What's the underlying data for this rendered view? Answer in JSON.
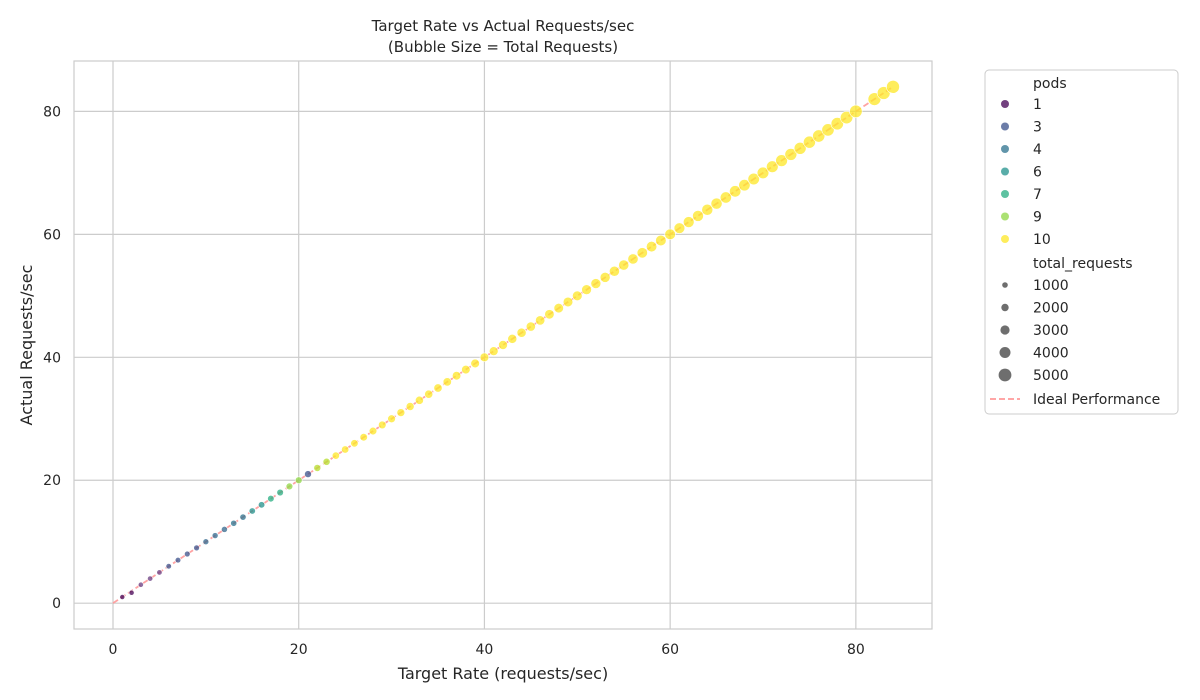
{
  "chart_data": {
    "type": "scatter",
    "title_line1": "Target Rate vs Actual Requests/sec",
    "title_line2": "(Bubble Size = Total Requests)",
    "xlabel": "Target Rate (requests/sec)",
    "ylabel": "Actual Requests/sec",
    "xlim": [
      -4.2,
      88.2
    ],
    "ylim": [
      -4.2,
      88.2
    ],
    "xticks": [
      0,
      20,
      40,
      60,
      80
    ],
    "yticks": [
      0,
      20,
      40,
      60,
      80
    ],
    "grid": true,
    "legend_placement": "outside-top-right",
    "hue_title": "pods",
    "hue_entries": [
      {
        "label": "1",
        "color": "#440154"
      },
      {
        "label": "3",
        "color": "#3b528b"
      },
      {
        "label": "4",
        "color": "#2c728e"
      },
      {
        "label": "6",
        "color": "#21918c"
      },
      {
        "label": "7",
        "color": "#27ad81"
      },
      {
        "label": "9",
        "color": "#8fd744"
      },
      {
        "label": "10",
        "color": "#fde725"
      }
    ],
    "size_title": "total_requests",
    "size_entries": [
      "1000",
      "2000",
      "3000",
      "4000",
      "5000"
    ],
    "ideal_line_label": "Ideal Performance",
    "ideal_line_color": "#ff9a9a",
    "ideal_line": {
      "x": [
        0,
        84
      ],
      "y": [
        0,
        84
      ]
    },
    "point_color_ranges": [
      {
        "from": 1,
        "to": 2,
        "color": "#440154"
      },
      {
        "from": 3,
        "to": 5,
        "color": "#6a3d82"
      },
      {
        "from": 6,
        "to": 9,
        "color": "#3b528b"
      },
      {
        "from": 10,
        "to": 12,
        "color": "#31688e"
      },
      {
        "from": 13,
        "to": 14,
        "color": "#2c728e"
      },
      {
        "from": 15,
        "to": 16,
        "color": "#21918c"
      },
      {
        "from": 17,
        "to": 18,
        "color": "#27ad81"
      },
      {
        "from": 19,
        "to": 20,
        "color": "#8fd744"
      },
      {
        "from": 21,
        "to": 21,
        "color": "#3b528b"
      },
      {
        "from": 22,
        "to": 23,
        "color": "#b5de2b"
      },
      {
        "from": 24,
        "to": 84,
        "color": "#fde725"
      }
    ],
    "points": [
      [
        1,
        1
      ],
      [
        2,
        1.7
      ],
      [
        3,
        3
      ],
      [
        4,
        4
      ],
      [
        5,
        5
      ],
      [
        6,
        6
      ],
      [
        7,
        7
      ],
      [
        8,
        8
      ],
      [
        9,
        9
      ],
      [
        10,
        10
      ],
      [
        11,
        11
      ],
      [
        12,
        12
      ],
      [
        13,
        13
      ],
      [
        14,
        14
      ],
      [
        15,
        15
      ],
      [
        16,
        16
      ],
      [
        17,
        17
      ],
      [
        18,
        18
      ],
      [
        19,
        19
      ],
      [
        20,
        20
      ],
      [
        21,
        21
      ],
      [
        22,
        22
      ],
      [
        23,
        23
      ],
      [
        24,
        24
      ],
      [
        25,
        25
      ],
      [
        26,
        26
      ],
      [
        27,
        27
      ],
      [
        28,
        28
      ],
      [
        29,
        29
      ],
      [
        30,
        30
      ],
      [
        31,
        31
      ],
      [
        32,
        32
      ],
      [
        33,
        33
      ],
      [
        34,
        34
      ],
      [
        35,
        35
      ],
      [
        36,
        36
      ],
      [
        37,
        37
      ],
      [
        38,
        38
      ],
      [
        39,
        39
      ],
      [
        40,
        40
      ],
      [
        41,
        41
      ],
      [
        42,
        42
      ],
      [
        43,
        43
      ],
      [
        44,
        44
      ],
      [
        45,
        45
      ],
      [
        46,
        46
      ],
      [
        47,
        47
      ],
      [
        48,
        48
      ],
      [
        49,
        49
      ],
      [
        50,
        50
      ],
      [
        51,
        51
      ],
      [
        52,
        52
      ],
      [
        53,
        53
      ],
      [
        54,
        54
      ],
      [
        55,
        55
      ],
      [
        56,
        56
      ],
      [
        57,
        57
      ],
      [
        58,
        58
      ],
      [
        59,
        59
      ],
      [
        60,
        60
      ],
      [
        61,
        61
      ],
      [
        62,
        62
      ],
      [
        63,
        63
      ],
      [
        64,
        64
      ],
      [
        65,
        65
      ],
      [
        66,
        66
      ],
      [
        67,
        67
      ],
      [
        68,
        68
      ],
      [
        69,
        69
      ],
      [
        70,
        70
      ],
      [
        71,
        71
      ],
      [
        72,
        72
      ],
      [
        73,
        73
      ],
      [
        74,
        74
      ],
      [
        75,
        75
      ],
      [
        76,
        76
      ],
      [
        77,
        77
      ],
      [
        78,
        78
      ],
      [
        79,
        79
      ],
      [
        80,
        80
      ],
      [
        82,
        82
      ],
      [
        83,
        83
      ],
      [
        84,
        84
      ]
    ]
  }
}
